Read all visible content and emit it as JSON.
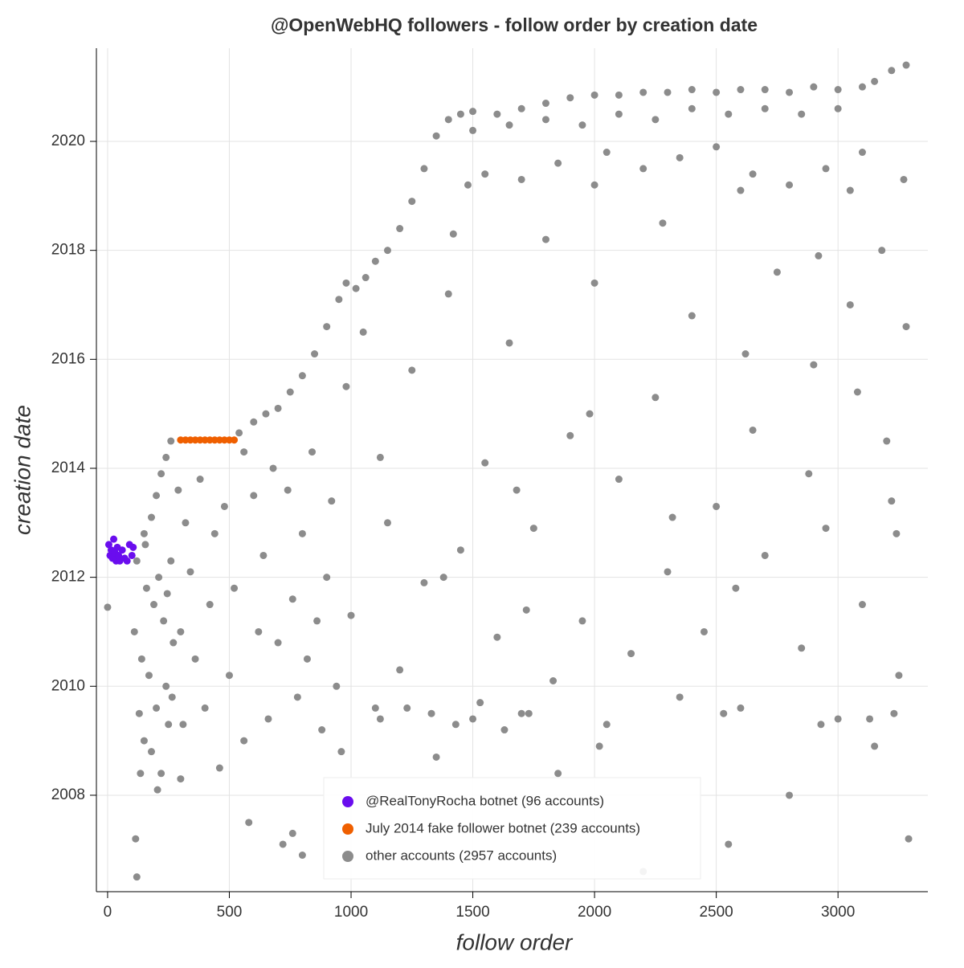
{
  "chart_data": {
    "type": "scatter",
    "title": "@OpenWebHQ followers - follow order by creation date",
    "x_label": "follow order",
    "y_label": "creation date",
    "xlim": [
      -46,
      3369
    ],
    "ylim": [
      2006.23,
      2021.71
    ],
    "xticks": [
      0,
      500,
      1000,
      1500,
      2000,
      2500,
      3000
    ],
    "yticks": [
      2008,
      2010,
      2012,
      2014,
      2016,
      2018,
      2020
    ],
    "grid": true,
    "legend": "bottom-center",
    "series": [
      {
        "name": "@RealTonyRocha botnet (96 accounts)",
        "color": "#6a0dee",
        "x": [
          5,
          10,
          15,
          20,
          25,
          30,
          35,
          40,
          45,
          50,
          60,
          70,
          80,
          90,
          100,
          105
        ],
        "values": [
          2012.6,
          2012.4,
          2012.5,
          2012.35,
          2012.7,
          2012.45,
          2012.3,
          2012.55,
          2012.4,
          2012.3,
          2012.5,
          2012.35,
          2012.3,
          2012.6,
          2012.4,
          2012.55
        ]
      },
      {
        "name": "July 2014 fake follower botnet (239 accounts)",
        "color": "#ef5f00",
        "x": [
          300,
          320,
          340,
          360,
          380,
          400,
          420,
          440,
          460,
          480,
          500,
          520
        ],
        "values": [
          2014.52,
          2014.52,
          2014.52,
          2014.52,
          2014.52,
          2014.52,
          2014.52,
          2014.52,
          2014.52,
          2014.52,
          2014.52,
          2014.52
        ]
      },
      {
        "name": "other accounts (2957 accounts)",
        "color": "#8c8c8c",
        "x": [
          0,
          120,
          150,
          180,
          200,
          220,
          240,
          260,
          540,
          600,
          650,
          700,
          750,
          800,
          850,
          900,
          950,
          980,
          1020,
          1060,
          1100,
          1150,
          1200,
          1250,
          1300,
          1350,
          1400,
          1450,
          1500,
          1600,
          1700,
          1800,
          1900,
          2000,
          2100,
          2200,
          2300,
          2400,
          2500,
          2600,
          2700,
          2800,
          2900,
          3000,
          3100,
          3150,
          3220,
          3280,
          1500,
          1650,
          1800,
          1950,
          2100,
          2250,
          2400,
          2550,
          2700,
          2850,
          3000,
          1550,
          1700,
          1850,
          2050,
          2200,
          2350,
          2500,
          2650,
          2800,
          2950,
          3100,
          1480,
          2000,
          2600,
          3050,
          110,
          130,
          140,
          150,
          160,
          170,
          180,
          190,
          200,
          210,
          220,
          230,
          240,
          250,
          260,
          270,
          120,
          115,
          135,
          155,
          205,
          245,
          265,
          290,
          300,
          310,
          320,
          340,
          360,
          380,
          400,
          420,
          440,
          460,
          480,
          500,
          520,
          560,
          580,
          600,
          620,
          640,
          660,
          680,
          700,
          720,
          740,
          760,
          780,
          800,
          820,
          840,
          860,
          880,
          900,
          920,
          940,
          960,
          980,
          1000,
          300,
          560,
          760,
          800,
          1050,
          1100,
          1150,
          1200,
          1250,
          1300,
          1350,
          1400,
          1450,
          1500,
          1550,
          1600,
          1650,
          1700,
          1750,
          1800,
          1850,
          1900,
          1950,
          2000,
          2050,
          2100,
          2150,
          2200,
          2250,
          2300,
          2350,
          2400,
          2450,
          2500,
          2550,
          2600,
          2650,
          2700,
          2750,
          2800,
          2850,
          2900,
          2950,
          3000,
          3050,
          3100,
          3150,
          3200,
          3250,
          3280,
          3290,
          3270,
          3240,
          3180,
          1120,
          1230,
          1330,
          1430,
          1530,
          1630,
          1730,
          1830,
          2530,
          2930,
          3130,
          3230,
          1380,
          1680,
          1980,
          2280,
          2580,
          2880,
          3080,
          1120,
          1420,
          1720,
          2020,
          2320,
          2620,
          2920,
          3220
        ],
        "values": [
          2011.45,
          2012.3,
          2012.8,
          2013.1,
          2013.5,
          2013.9,
          2014.2,
          2014.5,
          2014.65,
          2014.85,
          2015,
          2015.1,
          2015.4,
          2015.7,
          2016.1,
          2016.6,
          2017.1,
          2017.4,
          2017.3,
          2017.5,
          2017.8,
          2018,
          2018.4,
          2018.9,
          2019.5,
          2020.1,
          2020.4,
          2020.5,
          2020.55,
          2020.5,
          2020.6,
          2020.7,
          2020.8,
          2020.85,
          2020.85,
          2020.9,
          2020.9,
          2020.95,
          2020.9,
          2020.95,
          2020.95,
          2020.9,
          2021,
          2020.95,
          2021,
          2021.1,
          2021.3,
          2021.4,
          2020.2,
          2020.3,
          2020.4,
          2020.3,
          2020.5,
          2020.4,
          2020.6,
          2020.5,
          2020.6,
          2020.5,
          2020.6,
          2019.4,
          2019.3,
          2019.6,
          2019.8,
          2019.5,
          2019.7,
          2019.9,
          2019.4,
          2019.2,
          2019.5,
          2019.8,
          2019.2,
          2019.2,
          2019.1,
          2019.1,
          2011.0,
          2009.5,
          2010.5,
          2009.0,
          2011.8,
          2010.2,
          2008.8,
          2011.5,
          2009.6,
          2012.0,
          2008.4,
          2011.2,
          2010.0,
          2009.3,
          2012.3,
          2010.8,
          2006.5,
          2007.2,
          2008.4,
          2012.6,
          2008.1,
          2011.7,
          2009.8,
          2013.6,
          2011.0,
          2009.3,
          2013.0,
          2012.1,
          2010.5,
          2013.8,
          2009.6,
          2011.5,
          2012.8,
          2008.5,
          2013.3,
          2010.2,
          2011.8,
          2009.0,
          2007.5,
          2013.5,
          2011.0,
          2012.4,
          2009.4,
          2014.0,
          2010.8,
          2007.1,
          2013.6,
          2011.6,
          2009.8,
          2012.8,
          2010.5,
          2014.3,
          2011.2,
          2009.2,
          2012.0,
          2013.4,
          2010.0,
          2008.8,
          2015.5,
          2011.3,
          2008.3,
          2014.3,
          2007.3,
          2006.9,
          2016.5,
          2009.6,
          2013.0,
          2010.3,
          2015.8,
          2011.9,
          2008.7,
          2017.2,
          2012.5,
          2009.4,
          2014.1,
          2010.9,
          2016.3,
          2009.5,
          2012.9,
          2018.2,
          2008.4,
          2014.6,
          2011.2,
          2017.4,
          2009.3,
          2013.8,
          2010.6,
          2006.6,
          2015.3,
          2012.1,
          2009.8,
          2016.8,
          2011.0,
          2013.3,
          2007.1,
          2009.6,
          2014.7,
          2012.4,
          2017.6,
          2008.0,
          2010.7,
          2015.9,
          2012.9,
          2009.4,
          2017.0,
          2011.5,
          2008.9,
          2014.5,
          2010.2,
          2016.6,
          2007.2,
          2019.3,
          2012.8,
          2018.0,
          2009.4,
          2009.6,
          2009.5,
          2009.3,
          2009.7,
          2009.2,
          2009.5,
          2010.1,
          2009.5,
          2009.3,
          2009.4,
          2009.5,
          2012.0,
          2013.6,
          2015.0,
          2018.5,
          2011.8,
          2013.9,
          2015.4,
          2014.2,
          2018.3,
          2011.4,
          2008.9,
          2013.1,
          2016.1,
          2017.9,
          2013.4
        ]
      }
    ]
  }
}
